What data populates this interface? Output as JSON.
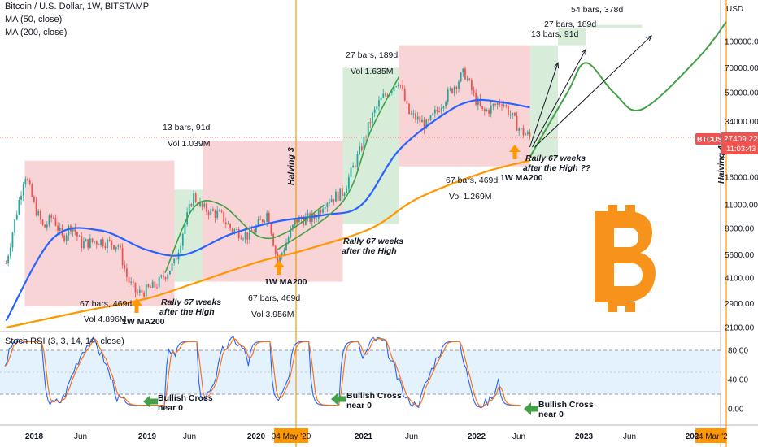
{
  "header": {
    "title": "Bitcoin / U.S. Dollar, 1W, BITSTAMP",
    "ma50": "MA (50, close)",
    "ma200": "MA (200, close)",
    "stoch": "Stoch RSI (3, 3, 14, 14, close)"
  },
  "colors": {
    "candle_up": "#26a69a",
    "candle_down": "#ef5350",
    "ma50": "#2962ff",
    "ma200": "#ff9800",
    "zone_red": "#f7c5c8",
    "zone_green": "#d3ebd5",
    "projection": "#43a047",
    "halving": "#ff9800",
    "stoch_k": "#2962ff",
    "stoch_d": "#ff6d00",
    "stoch_band": "#e3f2fd"
  },
  "chart_data": [
    {
      "type": "candlestick",
      "title": "Bitcoin / U.S. Dollar, 1W, BITSTAMP",
      "y_scale": "log",
      "ylim": [
        2100,
        150000
      ],
      "x_ticks": [
        "2018",
        "Jun",
        "2019",
        "Jun",
        "2020",
        "04 May '20",
        "2021",
        "Jun",
        "2022",
        "Jun",
        "2023",
        "Jun",
        "202",
        "04 Mar '2"
      ],
      "y_ticks": [
        100000,
        70000,
        50000,
        34000,
        24000,
        16000,
        11000,
        8000,
        5600,
        4100,
        2900,
        2100
      ],
      "y_tick_labels": [
        "100000.00",
        "70000.00",
        "50000.00",
        "34000.00",
        "24000.00",
        "16000.00",
        "11000.00",
        "8000.00",
        "5600.00",
        "4100.00",
        "2900.00",
        "2100.00"
      ],
      "currency": "USD",
      "last_price": {
        "symbol": "BTCUSD",
        "value": "27409.22",
        "countdown": "11:03:43"
      },
      "price_path": [
        [
          "2017-10",
          5000
        ],
        [
          "2017-12",
          17000
        ],
        [
          "2018-01",
          11000
        ],
        [
          "2018-02",
          8000
        ],
        [
          "2018-03",
          9500
        ],
        [
          "2018-04",
          7000
        ],
        [
          "2018-05",
          8500
        ],
        [
          "2018-06",
          6500
        ],
        [
          "2018-08",
          6800
        ],
        [
          "2018-10",
          6400
        ],
        [
          "2018-11",
          4000
        ],
        [
          "2018-12",
          3300
        ],
        [
          "2019-02",
          3700
        ],
        [
          "2019-04",
          5000
        ],
        [
          "2019-05",
          8000
        ],
        [
          "2019-06",
          12500
        ],
        [
          "2019-07",
          10500
        ],
        [
          "2019-09",
          9500
        ],
        [
          "2019-10",
          8000
        ],
        [
          "2019-12",
          7200
        ],
        [
          "2020-02",
          10000
        ],
        [
          "2020-03",
          5000
        ],
        [
          "2020-05",
          9000
        ],
        [
          "2020-07",
          9200
        ],
        [
          "2020-08",
          11500
        ],
        [
          "2020-10",
          13000
        ],
        [
          "2020-12",
          24000
        ],
        [
          "2021-01",
          35000
        ],
        [
          "2021-02",
          45000
        ],
        [
          "2021-04",
          60000
        ],
        [
          "2021-05",
          38000
        ],
        [
          "2021-07",
          32000
        ],
        [
          "2021-09",
          47000
        ],
        [
          "2021-11",
          66000
        ],
        [
          "2021-12",
          48000
        ],
        [
          "2022-01",
          38000
        ],
        [
          "2022-03",
          45000
        ],
        [
          "2022-05",
          30000
        ],
        [
          "2022-06",
          27409
        ]
      ],
      "series": [
        {
          "name": "MA (50, close)",
          "points": [
            [
              "2017-10",
              2300
            ],
            [
              "2018-03",
              7000
            ],
            [
              "2018-08",
              7800
            ],
            [
              "2019-01",
              6000
            ],
            [
              "2019-05",
              5600
            ],
            [
              "2019-10",
              7400
            ],
            [
              "2020-03",
              8800
            ],
            [
              "2020-08",
              9600
            ],
            [
              "2020-12",
              11000
            ],
            [
              "2021-04",
              23000
            ],
            [
              "2021-09",
              38000
            ],
            [
              "2021-12",
              45000
            ],
            [
              "2022-03",
              44000
            ],
            [
              "2022-06",
              41000
            ]
          ]
        },
        {
          "name": "MA (200, close)",
          "points": [
            [
              "2017-10",
              2100
            ],
            [
              "2018-06",
              2600
            ],
            [
              "2019-01",
              3100
            ],
            [
              "2019-06",
              3800
            ],
            [
              "2020-01",
              5100
            ],
            [
              "2020-06",
              6000
            ],
            [
              "2021-01",
              8000
            ],
            [
              "2021-06",
              12000
            ],
            [
              "2022-01",
              17000
            ],
            [
              "2022-06",
              20000
            ]
          ]
        }
      ],
      "projection": {
        "points": [
          [
            "2022-06",
            21000
          ],
          [
            "2022-10",
            50000
          ],
          [
            "2022-12",
            75000
          ],
          [
            "2023-03",
            50000
          ],
          [
            "2023-06",
            40000
          ],
          [
            "2023-12",
            80000
          ],
          [
            "2024-03",
            130000
          ]
        ]
      },
      "cycles": [
        {
          "red_zone": {
            "x": [
              "2017-12",
              "2019-04"
            ],
            "y": [
              2800,
              20000
            ]
          },
          "red_label": "67 bars, 469d",
          "red_vol": "Vol 4.896M",
          "green_zone": {
            "x": [
              "2019-04",
              "2019-07"
            ],
            "y": [
              3900,
              13500
            ]
          },
          "green_label": "13 bars, 91d",
          "green_vol": "Vol 1.039M",
          "ma200_label": "1W MA200",
          "rally_label": "Rally 67 weeks\nafter the High"
        },
        {
          "red_zone": {
            "x": [
              "2019-07",
              "2020-10"
            ],
            "y": [
              3900,
              26000
            ]
          },
          "red_label": "67 bars, 469d",
          "red_vol": "Vol 3.956M",
          "green_zone": {
            "x": [
              "2020-10",
              "2021-04"
            ],
            "y": [
              8500,
              70000
            ]
          },
          "green_label": "27 bars, 189d",
          "green_vol": "Vol 1.635M",
          "ma200_label": "1W MA200",
          "rally_label": "Rally 67 weeks\nafter the High"
        },
        {
          "red_zone": {
            "x": [
              "2021-04",
              "2022-06"
            ],
            "y": [
              18500,
              95000
            ]
          },
          "red_label": "67 bars, 469d",
          "red_vol": "Vol 1.269M",
          "ma200_label": "1W MA200",
          "rally_label": "Rally 67 weeks\nafter the High ??",
          "projection_labels": [
            "13 bars, 91d",
            "27 bars, 189d",
            "54 bars, 378d"
          ]
        }
      ],
      "halvings": [
        {
          "x": "2020-05",
          "label": "Halving 3"
        },
        {
          "x": "2024-03",
          "label": "Halving 4"
        }
      ]
    },
    {
      "type": "line",
      "title": "Stoch RSI (3, 3, 14, 14, close)",
      "ylim": [
        0,
        100
      ],
      "y_ticks": [
        80,
        40,
        0
      ],
      "y_tick_labels": [
        "80.00",
        "40.00",
        "0.00"
      ],
      "band": [
        20,
        80
      ],
      "annotations": [
        "Bullish Cross\nnear 0",
        "Bullish Cross\nnear 0",
        "Bullish Cross\nnear 0"
      ]
    }
  ]
}
